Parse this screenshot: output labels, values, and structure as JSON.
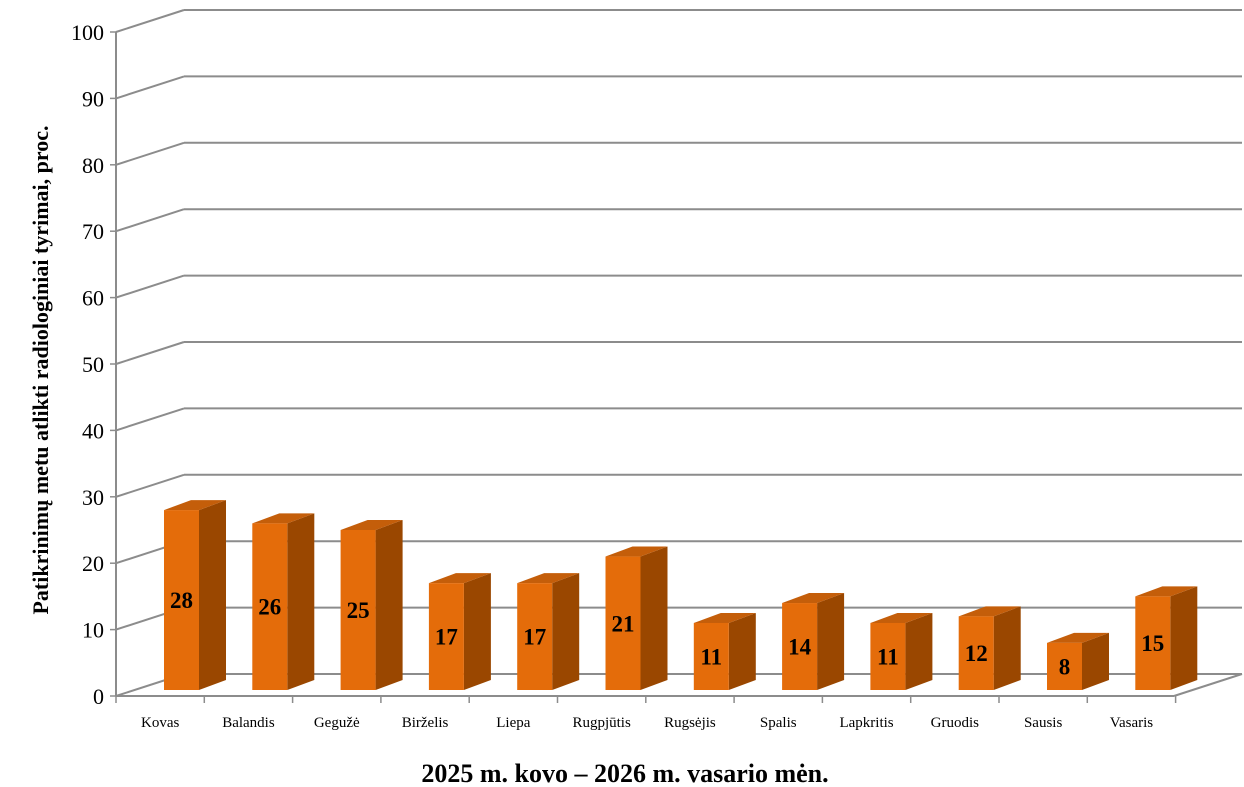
{
  "chart_data": {
    "type": "bar",
    "title": "",
    "xlabel": "2025 m. kovo – 2026 m. vasario mėn.",
    "ylabel": "Patikrinimų metu atlikti radiologiniai tyrimai, proc.",
    "ylim": [
      0,
      100
    ],
    "yticks": [
      0,
      10,
      20,
      30,
      40,
      50,
      60,
      70,
      80,
      90,
      100
    ],
    "grid": true,
    "three_d": true,
    "categories": [
      "Kovas",
      "Balandis",
      "Gegužė",
      "Birželis",
      "Liepa",
      "Rugpjūtis",
      "Rugsėjis",
      "Spalis",
      "Lapkritis",
      "Gruodis",
      "Sausis",
      "Vasaris"
    ],
    "values": [
      28,
      26,
      25,
      17,
      17,
      21,
      11,
      14,
      11,
      12,
      8,
      15
    ],
    "colors": {
      "bar_front": "#E46C0A",
      "bar_side": "#9A4700",
      "bar_top": "#C45E0A",
      "grid": "#8C8C8C"
    }
  }
}
